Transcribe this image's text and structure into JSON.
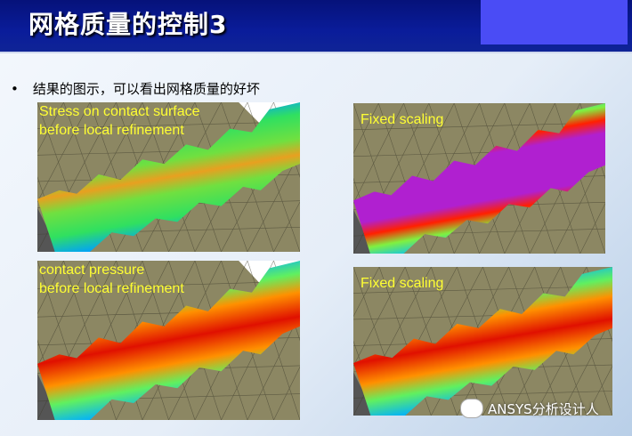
{
  "header": {
    "title": "网格质量的控制3"
  },
  "bullet": "结果的图示，可以看出网格质量的好坏",
  "panels": [
    {
      "caption_lines": [
        "Stress on contact surface",
        "before local refinement"
      ]
    },
    {
      "caption_lines": [
        "Fixed scaling"
      ]
    },
    {
      "caption_lines": [
        "contact pressure",
        "before local refinement"
      ]
    },
    {
      "caption_lines": [
        "Fixed scaling"
      ]
    }
  ],
  "watermark": "ANSYS分析设计人"
}
